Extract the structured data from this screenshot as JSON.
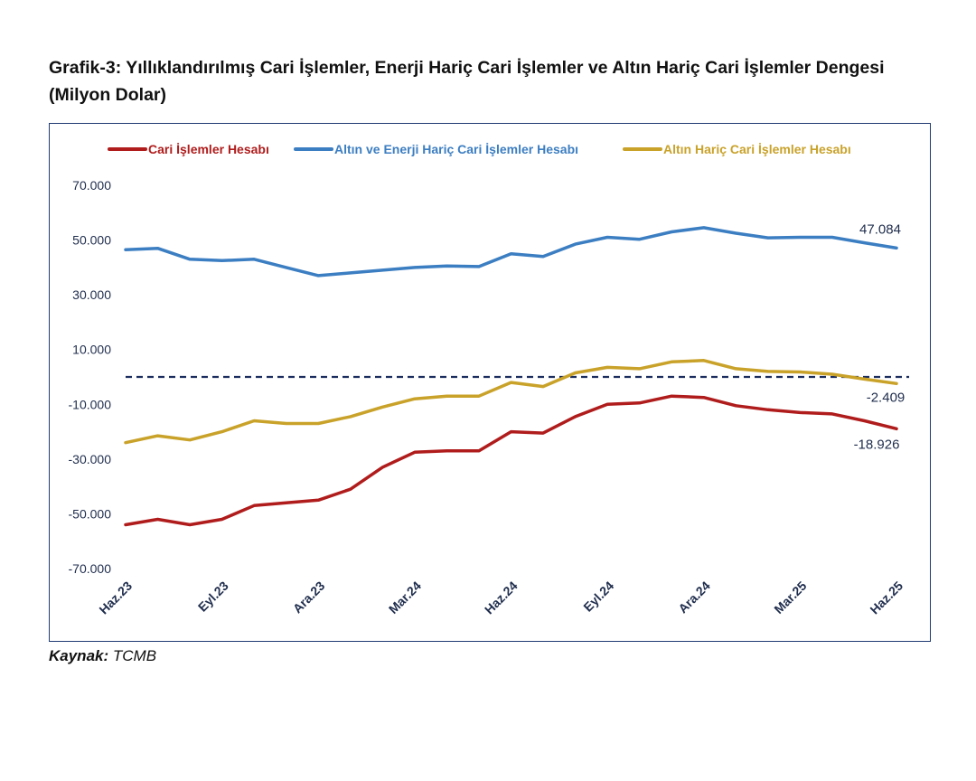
{
  "title": "Grafik-3: Yıllıklandırılmış Cari İşlemler, Enerji Hariç Cari İşlemler ve Altın Hariç Cari İşlemler Dengesi (Milyon Dolar)",
  "source": {
    "label": "Kaynak:",
    "value": "TCMB"
  },
  "chart_data": {
    "type": "line",
    "title": "Grafik-3: Yıllıklandırılmış Cari İşlemler, Enerji Hariç Cari İşlemler ve Altın Hariç Cari İşlemler Dengesi (Milyon Dolar)",
    "xlabel": "",
    "ylabel": "",
    "ylim": [
      -70000,
      70000
    ],
    "y_ticks": [
      70000,
      50000,
      30000,
      10000,
      -10000,
      -30000,
      -50000,
      -70000
    ],
    "y_tick_labels": [
      "70.000",
      "50.000",
      "30.000",
      "10.000",
      "-10.000",
      "-30.000",
      "-50.000",
      "-70.000"
    ],
    "x_tick_labels": [
      "Haz.23",
      "Eyl.23",
      "Ara.23",
      "Mar.24",
      "Haz.24",
      "Eyl.24",
      "Ara.24",
      "Mar.25",
      "Haz.25"
    ],
    "x": [
      "Haz.23",
      "Tem.23",
      "Ağu.23",
      "Eyl.23",
      "Eki.23",
      "Kas.23",
      "Ara.23",
      "Oca.24",
      "Şub.24",
      "Mar.24",
      "Nis.24",
      "May.24",
      "Haz.24",
      "Tem.24",
      "Ağu.24",
      "Eyl.24",
      "Eki.24",
      "Kas.24",
      "Ara.24",
      "Oca.25",
      "Şub.25",
      "Mar.25",
      "Nis.25",
      "May.25",
      "Haz.25"
    ],
    "reference_line": 0,
    "legend": "top",
    "series": [
      {
        "name": "Cari İşlemler Hesabı",
        "color": "#b01c1c",
        "values": [
          -54000,
          -52000,
          -54000,
          -52000,
          -47000,
          -46000,
          -45000,
          -41000,
          -33000,
          -27500,
          -27000,
          -27000,
          -20000,
          -20500,
          -14500,
          -10000,
          -9500,
          -7000,
          -7500,
          -10500,
          -12000,
          -13000,
          -13500,
          -16000,
          -18926
        ],
        "end_label": "-18.926"
      },
      {
        "name": "Altın ve Enerji Hariç Cari İşlemler Hesabı",
        "color": "#3c7ec2",
        "values": [
          46500,
          47000,
          43000,
          42500,
          43000,
          40000,
          37000,
          38000,
          39000,
          40000,
          40500,
          40300,
          45000,
          44000,
          48500,
          51000,
          50300,
          53000,
          54500,
          52500,
          50800,
          51000,
          51000,
          49000,
          47084
        ],
        "end_label": "47.084"
      },
      {
        "name": "Altın Hariç Cari İşlemler Hesabı",
        "color": "#c9a22a",
        "values": [
          -24000,
          -21500,
          -23000,
          -20000,
          -16000,
          -17000,
          -17000,
          -14500,
          -11000,
          -8000,
          -7000,
          -7000,
          -2000,
          -3500,
          1500,
          3500,
          3000,
          5500,
          6000,
          3000,
          2000,
          1800,
          1000,
          -800,
          -2409
        ],
        "end_label": "-2.409"
      }
    ]
  }
}
